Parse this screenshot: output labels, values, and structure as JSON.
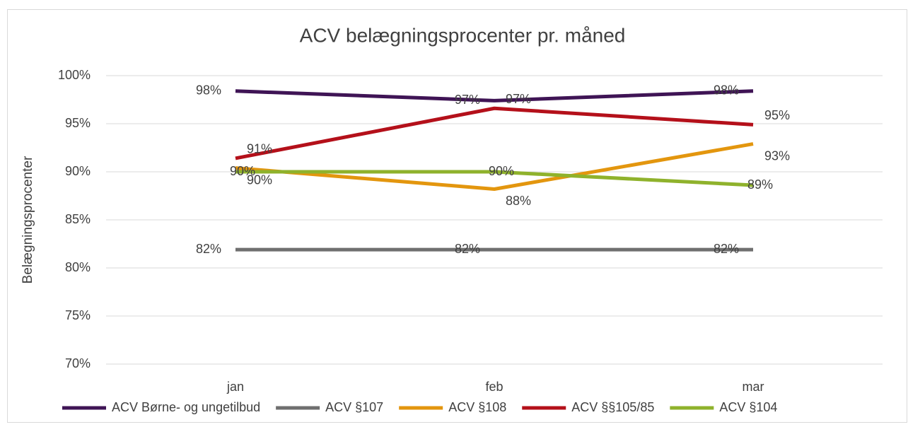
{
  "chart_data": {
    "type": "line",
    "title": "ACV belægningsprocenter pr. måned",
    "y_label": "Belægningsprocenter",
    "categories": [
      "jan",
      "feb",
      "mar"
    ],
    "ylim": [
      70,
      100
    ],
    "yticks": [
      {
        "value": 70,
        "label": "70%"
      },
      {
        "value": 75,
        "label": "75%"
      },
      {
        "value": 80,
        "label": "80%"
      },
      {
        "value": 85,
        "label": "85%"
      },
      {
        "value": 90,
        "label": "90%"
      },
      {
        "value": 95,
        "label": "95%"
      },
      {
        "value": 100,
        "label": "100%"
      }
    ],
    "grid": true,
    "legend": "bottom",
    "series": [
      {
        "name": "ACV Børne- og ungetilbud",
        "color": "#3f1455",
        "values": [
          98.4,
          97.4,
          98.4
        ],
        "value_labels": [
          "98%",
          "97%",
          "98%"
        ]
      },
      {
        "name": "ACV §107",
        "color": "#6f6f6f",
        "values": [
          81.9,
          81.9,
          81.9
        ],
        "value_labels": [
          "82%",
          "82%",
          "82%"
        ]
      },
      {
        "name": "ACV §108",
        "color": "#e3960e",
        "values": [
          90.4,
          88.2,
          92.9
        ],
        "value_labels": [
          "90%",
          "88%",
          "93%"
        ]
      },
      {
        "name": "ACV §§105/85",
        "color": "#b4101a",
        "values": [
          91.4,
          96.6,
          94.9
        ],
        "value_labels": [
          "91%",
          "97%",
          "95%"
        ]
      },
      {
        "name": "ACV §104",
        "color": "#8fb22c",
        "values": [
          90.0,
          90.0,
          88.6
        ],
        "value_labels": [
          "90%",
          "90%",
          "89%"
        ]
      }
    ]
  }
}
